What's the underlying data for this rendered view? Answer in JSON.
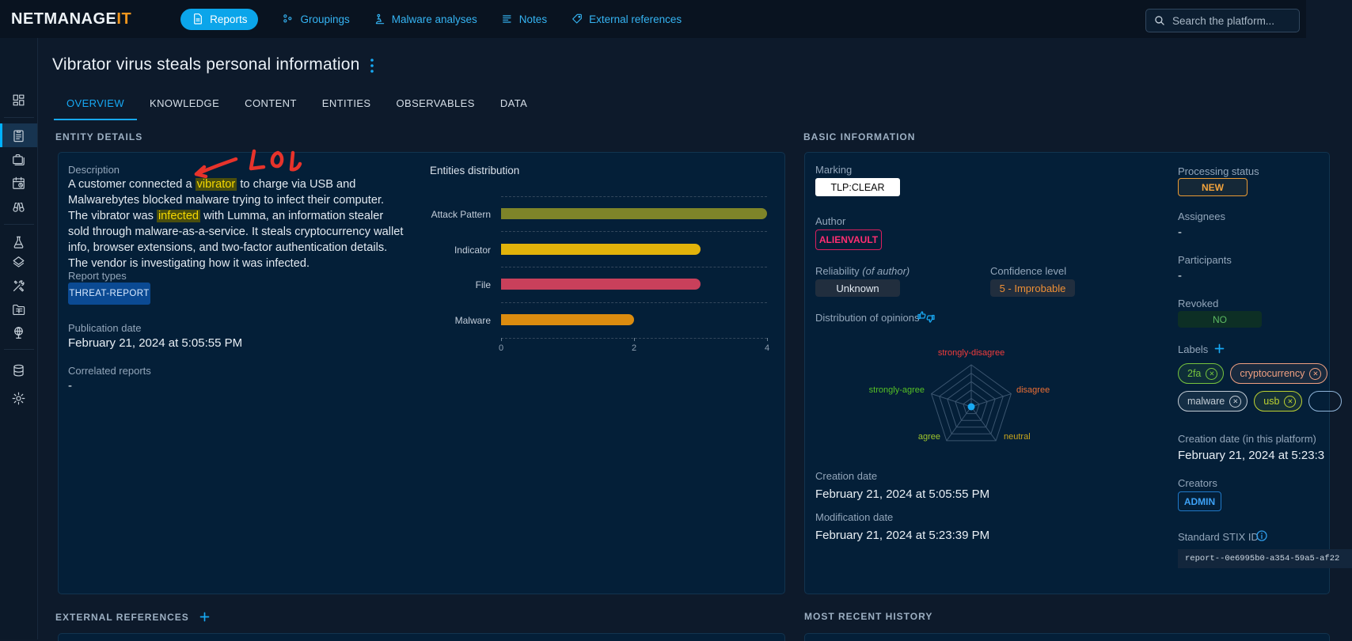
{
  "topbar": {
    "logo_part1": "NETMANAGE",
    "logo_part2": "IT",
    "nav": [
      {
        "label": "Reports",
        "icon": "reports-icon",
        "active": true
      },
      {
        "label": "Groupings",
        "icon": "groupings-icon",
        "active": false
      },
      {
        "label": "Malware analyses",
        "icon": "malware-analyses-icon",
        "active": false
      },
      {
        "label": "Notes",
        "icon": "notes-icon",
        "active": false
      },
      {
        "label": "External references",
        "icon": "external-references-icon",
        "active": false
      }
    ],
    "search_placeholder": "Search the platform..."
  },
  "sidebar": {
    "items": [
      "dashboard-icon",
      "analyses-icon",
      "cases-icon",
      "events-icon",
      "observations-icon",
      "threats-icon",
      "arsenal-icon",
      "techniques-icon",
      "entities-icon",
      "locations-icon",
      "data-icon",
      "settings-icon"
    ],
    "active_item": "analyses-icon"
  },
  "page": {
    "title": "Vibrator virus steals personal information",
    "tabs": [
      {
        "label": "OVERVIEW",
        "active": true
      },
      {
        "label": "KNOWLEDGE",
        "active": false
      },
      {
        "label": "CONTENT",
        "active": false
      },
      {
        "label": "ENTITIES",
        "active": false
      },
      {
        "label": "OBSERVABLES",
        "active": false
      },
      {
        "label": "DATA",
        "active": false
      }
    ]
  },
  "entity_details": {
    "header": "ENTITY DETAILS",
    "description_label": "Description",
    "description_segments": [
      {
        "text": "A customer connected a ",
        "highlight": false
      },
      {
        "text": "vibrator",
        "highlight": true
      },
      {
        "text": " to charge via USB and Malwarebytes blocked malware trying to infect their computer. The vibrator was ",
        "highlight": false
      },
      {
        "text": "infected",
        "highlight": true
      },
      {
        "text": " with Lumma, an information stealer sold through malware-as-a-service. It steals cryptocurrency wallet info, browser extensions, and two-factor authentication details. The vendor is investigating how it was infected.",
        "highlight": false
      }
    ],
    "report_types_label": "Report types",
    "report_type": "THREAT-REPORT",
    "publication_date_label": "Publication date",
    "publication_date": "February 21, 2024 at 5:05:55 PM",
    "correlated_reports_label": "Correlated reports",
    "correlated_reports": "-"
  },
  "chart_data": [
    {
      "type": "bar",
      "orientation": "horizontal",
      "title": "Entities distribution",
      "categories": [
        "Attack Pattern",
        "Indicator",
        "File",
        "Malware"
      ],
      "values": [
        4,
        3,
        3,
        2
      ],
      "colors": [
        "#7e8429",
        "#e2b30a",
        "#c9405b",
        "#dc8c0f"
      ],
      "xlim": [
        0,
        4
      ],
      "x_ticks": [
        0,
        2,
        4
      ],
      "grid": "dashed",
      "legend": "none"
    },
    {
      "type": "radar",
      "title": "Distribution of opinions",
      "axes": [
        "strongly-disagree",
        "disagree",
        "neutral",
        "agree",
        "strongly-agree"
      ],
      "axis_colors": [
        "#f23c3c",
        "#eb6f35",
        "#c8a51c",
        "#9fc52c",
        "#55c025"
      ],
      "values": [
        0,
        0,
        0,
        0,
        0
      ],
      "rings": 5
    }
  ],
  "basic_information": {
    "header": "BASIC INFORMATION",
    "marking_label": "Marking",
    "marking": "TLP:CLEAR",
    "author_label": "Author",
    "author": "ALIENVAULT",
    "reliability_label": "Reliability",
    "reliability_label_suffix": "(of author)",
    "reliability": "Unknown",
    "confidence_label": "Confidence level",
    "confidence": "5 - Improbable",
    "opinions_label": "Distribution of opinions",
    "creation_date_label": "Creation date",
    "creation_date": "February 21, 2024 at 5:05:55 PM",
    "modification_date_label": "Modification date",
    "modification_date": "February 21, 2024 at 5:23:39 PM",
    "processing_status_label": "Processing status",
    "processing_status": "NEW",
    "assignees_label": "Assignees",
    "assignees": "-",
    "participants_label": "Participants",
    "participants": "-",
    "revoked_label": "Revoked",
    "revoked": "NO",
    "labels_label": "Labels",
    "labels": [
      {
        "text": "2fa",
        "color": "#76c33e"
      },
      {
        "text": "cryptocurrency",
        "color": "#efa081"
      },
      {
        "text": "malware",
        "color": "#c2cbd4"
      },
      {
        "text": "usb",
        "color": "#bcd132"
      }
    ],
    "platform_creation_date_label": "Creation date (in this platform)",
    "platform_creation_date": "February 21, 2024 at 5:23:3",
    "creators_label": "Creators",
    "creators": "ADMIN",
    "stix_label": "Standard STIX ID",
    "stix_id": "report--0e6995b0-a354-59a5-af22"
  },
  "sections": {
    "external_references": "EXTERNAL REFERENCES",
    "most_recent_history": "MOST RECENT HISTORY"
  },
  "annotation": {
    "text": "LOL",
    "color": "#e7332b"
  }
}
